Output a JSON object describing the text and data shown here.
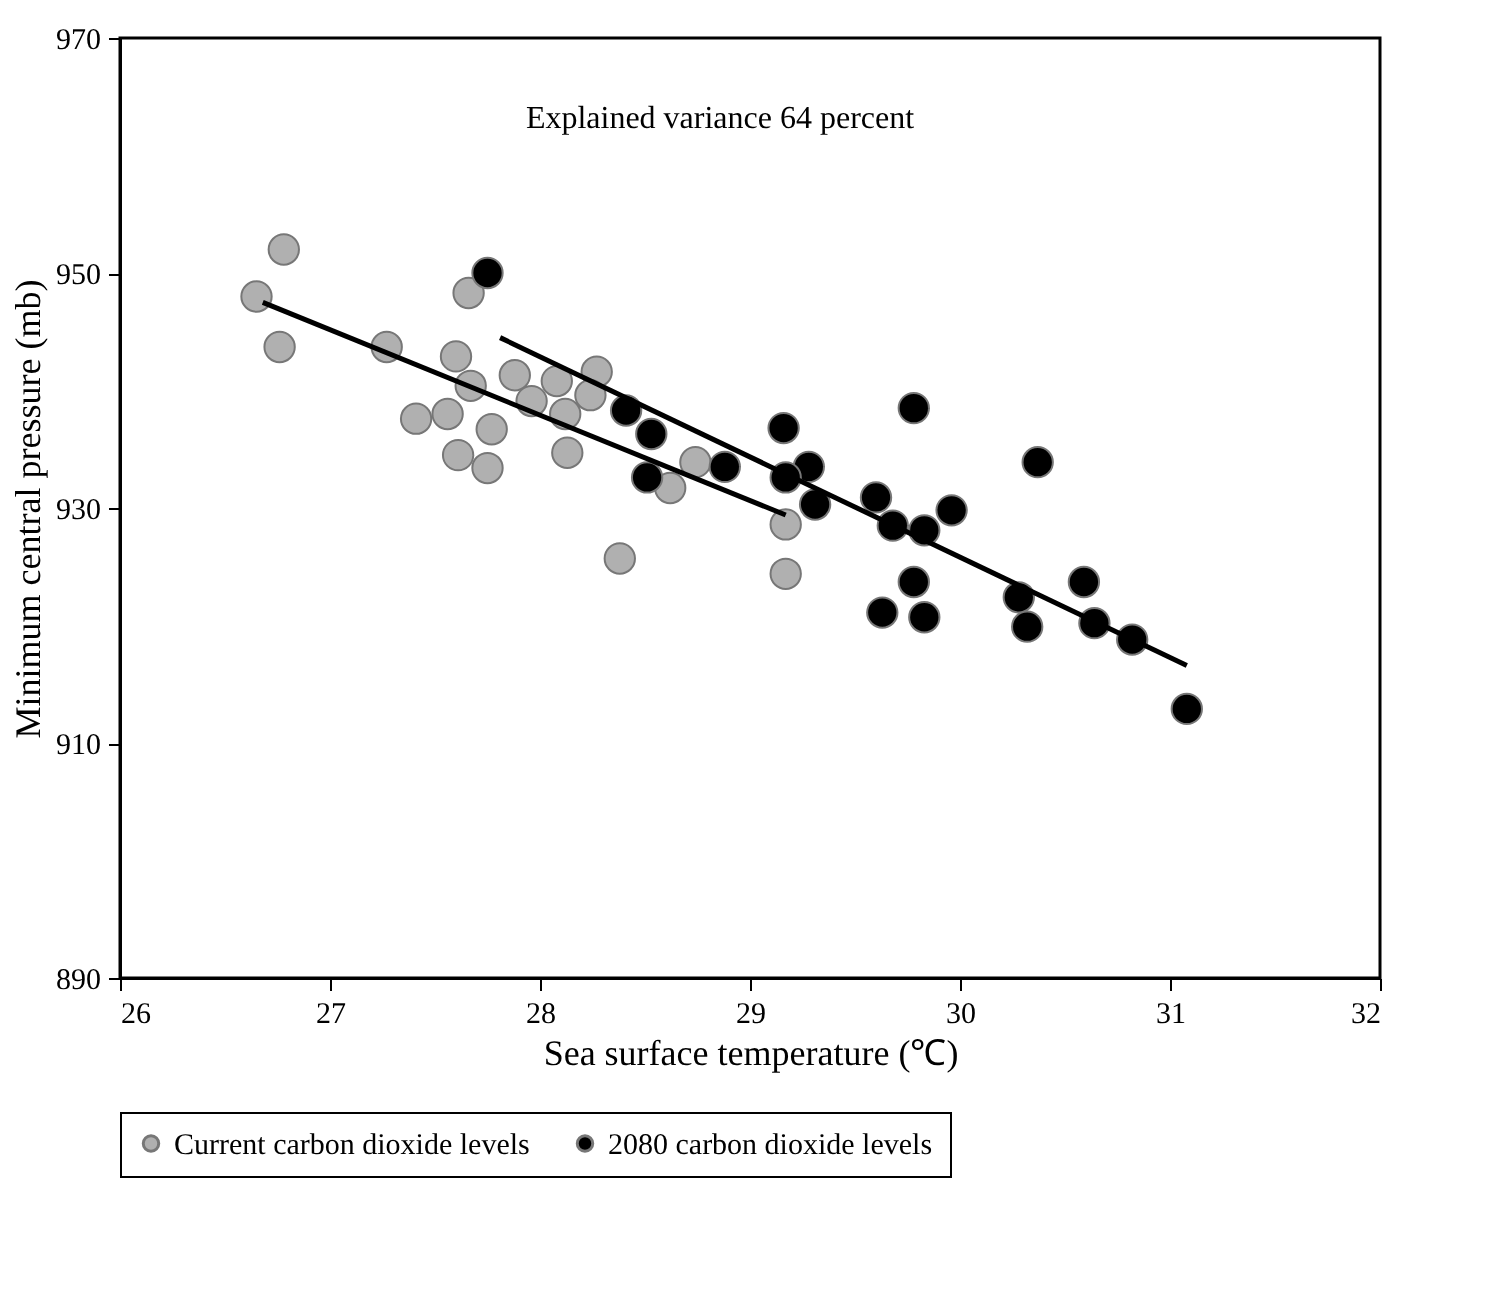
{
  "chart_data": {
    "type": "scatter",
    "xlabel": "Sea surface temperature (℃)",
    "ylabel": "Minimum central pressure (mb)",
    "annotations": [
      "Explained variance 64 percent"
    ],
    "xlim": [
      26,
      32
    ],
    "xticks": [
      26,
      27,
      28,
      29,
      30,
      31,
      32
    ],
    "ylim": [
      890,
      970
    ],
    "yticks": [
      890,
      910,
      930,
      950,
      970
    ],
    "grid": false,
    "legend": "bottom",
    "series": [
      {
        "name": "Current carbon dioxide levels",
        "color": "#b0b0b0",
        "marker": "circle",
        "x": [
          26.78,
          26.65,
          26.76,
          27.27,
          27.66,
          27.6,
          27.67,
          27.41,
          27.56,
          27.77,
          27.61,
          27.75,
          27.88,
          28.08,
          28.27,
          28.24,
          28.12,
          27.96,
          28.13,
          28.38,
          28.74,
          28.62,
          29.17,
          29.17
        ],
        "values": [
          952,
          948,
          943.7,
          943.7,
          948.3,
          942.9,
          940.4,
          937.6,
          938,
          936.7,
          934.5,
          933.4,
          941.3,
          940.8,
          941.6,
          939.6,
          938,
          939.1,
          934.7,
          925.7,
          933.9,
          931.7,
          928.6,
          924.4
        ]
      },
      {
        "name": "2080 carbon dioxide levels",
        "color": "#000000",
        "marker": "circle",
        "x": [
          27.75,
          28.41,
          28.53,
          28.51,
          28.88,
          29.16,
          29.28,
          29.17,
          29.31,
          29.6,
          29.68,
          29.83,
          29.96,
          29.78,
          30.37,
          29.78,
          29.63,
          29.83,
          30.28,
          30.32,
          30.59,
          30.64,
          30.82,
          31.08
        ],
        "values": [
          950,
          938.3,
          936.3,
          932.6,
          933.5,
          936.8,
          933.5,
          932.6,
          930.3,
          930.9,
          928.5,
          928.1,
          929.8,
          938.5,
          933.9,
          923.7,
          921.1,
          920.7,
          922.4,
          919.9,
          923.7,
          920.2,
          918.8,
          912.9
        ]
      },
      {
        "type": "line",
        "color": "#000000",
        "marker": "none",
        "line_style": "solid",
        "x": [
          26.68,
          29.17
        ],
        "values": [
          947.5,
          929.4
        ]
      },
      {
        "type": "line",
        "color": "#000000",
        "marker": "none",
        "line_style": "solid",
        "x": [
          27.81,
          31.08
        ],
        "values": [
          944.5,
          916.6
        ]
      }
    ]
  }
}
